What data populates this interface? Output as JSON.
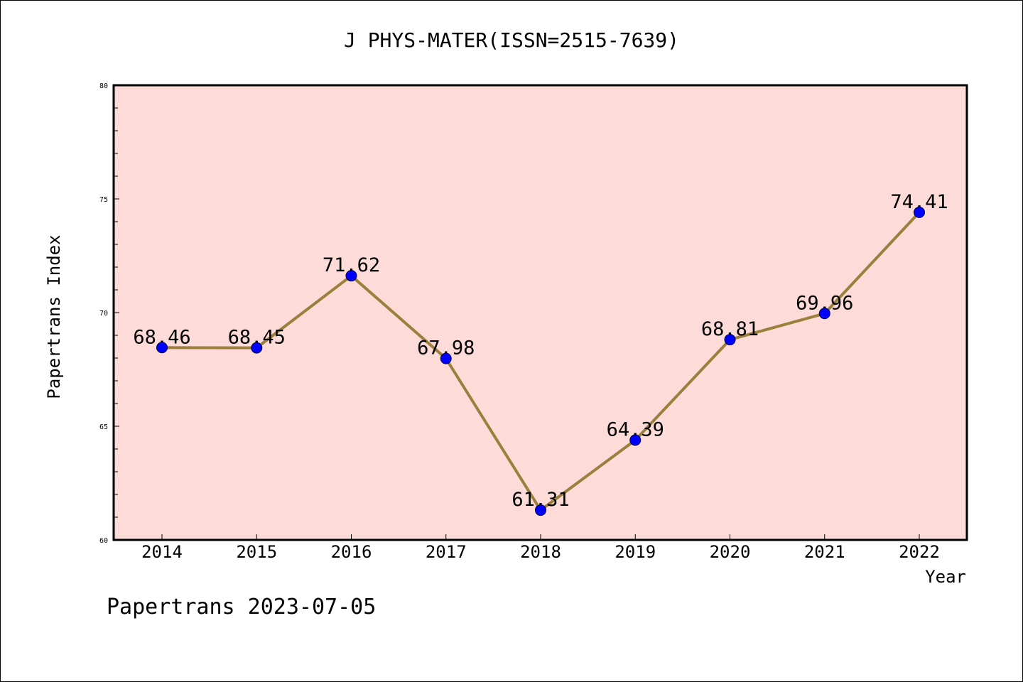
{
  "chart_data": {
    "type": "line",
    "title": "J PHYS-MATER(ISSN=2515-7639)",
    "xlabel": "Year",
    "ylabel": "Papertrans Index",
    "categories": [
      "2014",
      "2015",
      "2016",
      "2017",
      "2018",
      "2019",
      "2020",
      "2021",
      "2022"
    ],
    "values": [
      68.46,
      68.45,
      71.62,
      67.98,
      61.31,
      64.39,
      68.81,
      69.96,
      74.41
    ],
    "data_labels": [
      "68.46",
      "68.45",
      "71.62",
      "67.98",
      "61.31",
      "64.39",
      "68.81",
      "69.96",
      "74.41"
    ],
    "ylim": [
      60,
      80
    ],
    "yticks": [
      "60",
      "65",
      "70",
      "75",
      "80"
    ],
    "grid": false,
    "colors": {
      "plot_background": "#fddbd8",
      "line": "#9b7f3d",
      "marker": "#0000ff"
    }
  },
  "footer": {
    "text": "Papertrans 2023-07-05"
  }
}
